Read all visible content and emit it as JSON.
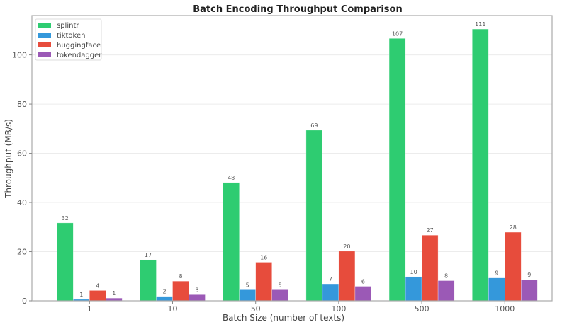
{
  "chart_data": {
    "type": "bar",
    "title": "Batch Encoding Throughput Comparison",
    "xlabel": "Batch Size (number of texts)",
    "ylabel": "Throughput (MB/s)",
    "categories": [
      "1",
      "10",
      "50",
      "100",
      "500",
      "1000"
    ],
    "ylim": [
      0,
      116
    ],
    "yticks": [
      0,
      20,
      40,
      60,
      80,
      100
    ],
    "grid": true,
    "legend_position": "upper left",
    "series": [
      {
        "name": "splintr",
        "color": "#2ecc71",
        "values": [
          31.7,
          16.7,
          48.1,
          69.4,
          106.7,
          110.5
        ],
        "labels": [
          "32",
          "17",
          "48",
          "69",
          "107",
          "111"
        ]
      },
      {
        "name": "tiktoken",
        "color": "#3498db",
        "values": [
          0.6,
          1.8,
          4.5,
          6.9,
          9.8,
          9.3
        ],
        "labels": [
          "1",
          "2",
          "5",
          "7",
          "10",
          "9"
        ]
      },
      {
        "name": "huggingface",
        "color": "#e74c3c",
        "values": [
          4.2,
          8.0,
          15.7,
          20.2,
          26.7,
          27.9
        ],
        "labels": [
          "4",
          "8",
          "16",
          "20",
          "27",
          "28"
        ]
      },
      {
        "name": "tokendagger",
        "color": "#9b59b6",
        "values": [
          1.1,
          2.5,
          4.5,
          5.9,
          8.2,
          8.6
        ],
        "labels": [
          "1",
          "3",
          "5",
          "6",
          "8",
          "9"
        ]
      }
    ]
  }
}
